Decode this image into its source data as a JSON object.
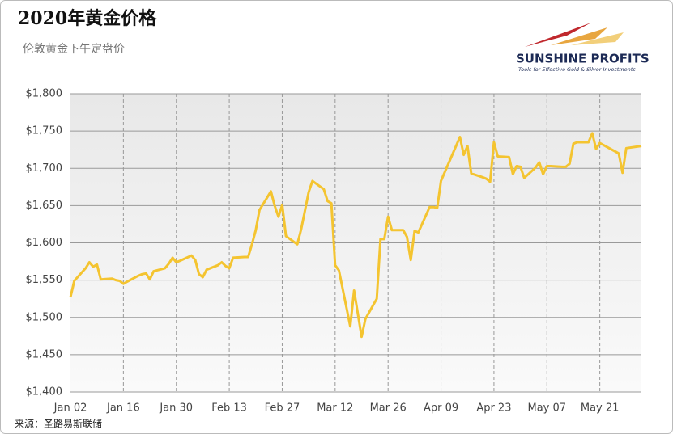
{
  "chart_data": {
    "type": "line",
    "title": "2020年黄金价格",
    "subtitle": "伦敦黄金下午定盘价",
    "source": "来源：圣路易斯联储",
    "logo": {
      "name": "SUNSHINE PROFITS",
      "tagline": "Tools for Effective Gold & Silver Investments"
    },
    "color": "#f4c430",
    "grid": true,
    "x": [
      "Jan 02",
      "Jan 03",
      "Jan 06",
      "Jan 07",
      "Jan 08",
      "Jan 09",
      "Jan 10",
      "Jan 13",
      "Jan 14",
      "Jan 15",
      "Jan 16",
      "Jan 17",
      "Jan 20",
      "Jan 21",
      "Jan 22",
      "Jan 23",
      "Jan 24",
      "Jan 27",
      "Jan 28",
      "Jan 29",
      "Jan 30",
      "Jan 31",
      "Feb 03",
      "Feb 04",
      "Feb 05",
      "Feb 06",
      "Feb 07",
      "Feb 10",
      "Feb 11",
      "Feb 12",
      "Feb 13",
      "Feb 14",
      "Feb 17",
      "Feb 18",
      "Feb 19",
      "Feb 20",
      "Feb 21",
      "Feb 24",
      "Feb 25",
      "Feb 26",
      "Feb 27",
      "Feb 28",
      "Mar 02",
      "Mar 03",
      "Mar 04",
      "Mar 05",
      "Mar 06",
      "Mar 09",
      "Mar 10",
      "Mar 11",
      "Mar 12",
      "Mar 13",
      "Mar 16",
      "Mar 17",
      "Mar 19",
      "Mar 20",
      "Mar 23",
      "Mar 24",
      "Mar 25",
      "Mar 26",
      "Mar 27",
      "Mar 30",
      "Mar 31",
      "Apr 01",
      "Apr 02",
      "Apr 03",
      "Apr 06",
      "Apr 07",
      "Apr 08",
      "Apr 09",
      "Apr 14",
      "Apr 15",
      "Apr 16",
      "Apr 17",
      "Apr 20",
      "Apr 21",
      "Apr 22",
      "Apr 23",
      "Apr 24",
      "Apr 27",
      "Apr 28",
      "Apr 29",
      "Apr 30",
      "May 01",
      "May 04",
      "May 05",
      "May 06",
      "May 07",
      "May 08",
      "May 11",
      "May 12",
      "May 13",
      "May 14",
      "May 15",
      "May 18",
      "May 19",
      "May 20",
      "May 21",
      "May 26",
      "May 27",
      "May 28",
      "Jun 01"
    ],
    "values": [
      1527,
      1549,
      1566,
      1574,
      1568,
      1571,
      1551,
      1552,
      1550,
      1549,
      1545,
      1548,
      1556,
      1558,
      1559,
      1551,
      1562,
      1566,
      1572,
      1580,
      1574,
      1576,
      1583,
      1577,
      1558,
      1554,
      1564,
      1570,
      1574,
      1569,
      1566,
      1580,
      1581,
      1581,
      1598,
      1617,
      1644,
      1669,
      1650,
      1635,
      1651,
      1609,
      1598,
      1618,
      1643,
      1668,
      1683,
      1672,
      1656,
      1653,
      1570,
      1563,
      1488,
      1536,
      1474,
      1498,
      1525,
      1605,
      1605,
      1635,
      1617,
      1617,
      1608,
      1577,
      1616,
      1614,
      1648,
      1648,
      1647,
      1683,
      1742,
      1718,
      1730,
      1693,
      1688,
      1686,
      1682,
      1735,
      1716,
      1715,
      1692,
      1703,
      1702,
      1687,
      1701,
      1708,
      1692,
      1703,
      1703,
      1702,
      1702,
      1706,
      1733,
      1735,
      1735,
      1747,
      1726,
      1734,
      1720,
      1694,
      1727,
      1730
    ],
    "xlim": [
      "Jan 02",
      "Jun 01"
    ],
    "xticks": [
      "Jan 02",
      "Jan 16",
      "Jan 30",
      "Feb 13",
      "Feb 27",
      "Mar 12",
      "Mar 26",
      "Apr 09",
      "Apr 23",
      "May 07",
      "May 21"
    ],
    "ylim": [
      1400,
      1800
    ],
    "yticks": [
      {
        "value": 1400,
        "label": "$1,400"
      },
      {
        "value": 1450,
        "label": "$1,450"
      },
      {
        "value": 1500,
        "label": "$1,500"
      },
      {
        "value": 1550,
        "label": "$1,550"
      },
      {
        "value": 1600,
        "label": "$1,600"
      },
      {
        "value": 1650,
        "label": "$1,650"
      },
      {
        "value": 1700,
        "label": "$1,700"
      },
      {
        "value": 1750,
        "label": "$1,750"
      },
      {
        "value": 1800,
        "label": "$1,800"
      }
    ]
  }
}
